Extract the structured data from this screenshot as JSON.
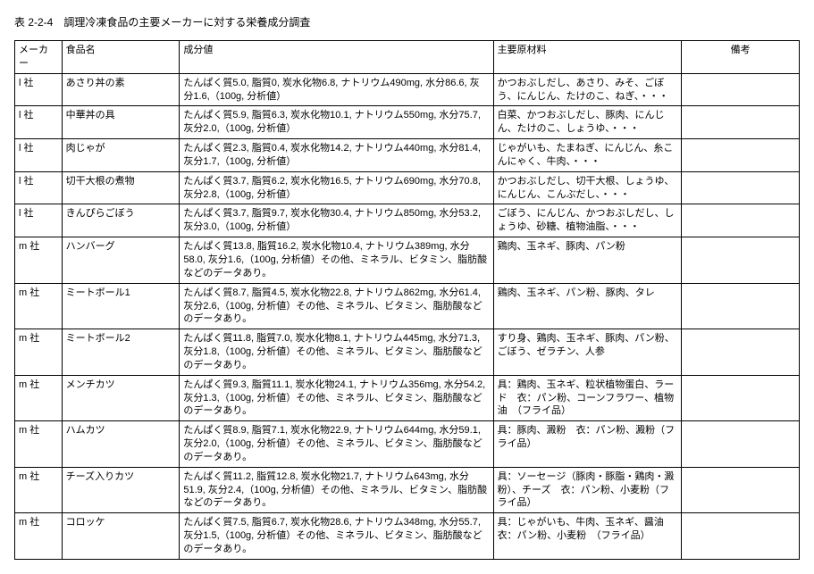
{
  "title": "表 2-2-4　調理冷凍食品の主要メーカーに対する栄養成分調査",
  "headers": {
    "maker": "メーカー",
    "food": "食品名",
    "component": "成分値",
    "material": "主要原材料",
    "note": "備考"
  },
  "rows": [
    {
      "maker": "l 社",
      "food": "あさり丼の素",
      "component": "たんぱく質5.0, 脂質0, 炭水化物6.8, ナトリウム490mg, 水分86.6, 灰分1.6,（100g, 分析値）",
      "material": "かつおぶしだし、あさり、みそ、ごぼう、にんじん、たけのこ、ねぎ、・・・",
      "note": ""
    },
    {
      "maker": "l 社",
      "food": "中華丼の具",
      "component": "たんぱく質5.9, 脂質6.3, 炭水化物10.1, ナトリウム550mg, 水分75.7, 灰分2.0,（100g, 分析値）",
      "material": "白菜、かつおぶしだし、豚肉、にんじん、たけのこ、しょうゆ、・・・",
      "note": ""
    },
    {
      "maker": "l 社",
      "food": "肉じゃが",
      "component": "たんぱく質2.3, 脂質0.4, 炭水化物14.2, ナトリウム440mg, 水分81.4, 灰分1.7,（100g, 分析値）",
      "material": "じゃがいも、たまねぎ、にんじん、糸こんにゃく、牛肉、・・・",
      "note": ""
    },
    {
      "maker": "l 社",
      "food": "切干大根の煮物",
      "component": "たんぱく質3.7, 脂質6.2, 炭水化物16.5, ナトリウム690mg, 水分70.8, 灰分2.8,（100g, 分析値）",
      "material": "かつおぶしだし、切干大根、しょうゆ、にんじん、こんぶだし、・・・",
      "note": ""
    },
    {
      "maker": "l 社",
      "food": "きんぴらごぼう",
      "component": "たんぱく質3.7, 脂質9.7, 炭水化物30.4, ナトリウム850mg, 水分53.2, 灰分3.0,（100g, 分析値）",
      "material": "ごぼう、にんじん、かつおぶしだし、しょうゆ、砂糖、植物油脂、・・・",
      "note": ""
    },
    {
      "maker": "m 社",
      "food": "ハンバーグ",
      "component": "たんぱく質13.8, 脂質16.2, 炭水化物10.4, ナトリウム389mg, 水分58.0, 灰分1.6,（100g, 分析値）その他、ミネラル、ビタミン、脂肪酸などのデータあり。",
      "material": "鶏肉、玉ネギ、豚肉、パン粉",
      "note": ""
    },
    {
      "maker": "m 社",
      "food": "ミートボール1",
      "component": "たんぱく質8.7, 脂質4.5, 炭水化物22.8, ナトリウム862mg, 水分61.4, 灰分2.6,（100g, 分析値）その他、ミネラル、ビタミン、脂肪酸などのデータあり。",
      "material": "鶏肉、玉ネギ、パン粉、豚肉、タレ",
      "note": ""
    },
    {
      "maker": "m 社",
      "food": "ミートボール2",
      "component": "たんぱく質11.8, 脂質7.0, 炭水化物8.1, ナトリウム445mg, 水分71.3, 灰分1.8,（100g, 分析値）その他、ミネラル、ビタミン、脂肪酸などのデータあり。",
      "material": "すり身、鶏肉、玉ネギ、豚肉、パン粉、ごぼう、ゼラチン、人参",
      "note": ""
    },
    {
      "maker": "m 社",
      "food": "メンチカツ",
      "component": "たんぱく質9.3, 脂質11.1, 炭水化物24.1, ナトリウム356mg, 水分54.2, 灰分1.3,（100g, 分析値）その他、ミネラル、ビタミン、脂肪酸などのデータあり。",
      "material": "具：鶏肉、玉ネギ、粒状植物蛋白、ラード　衣：パン粉、コーンフラワー、植物油　（フライ品）",
      "note": ""
    },
    {
      "maker": "m 社",
      "food": "ハムカツ",
      "component": "たんぱく質8.9, 脂質7.1, 炭水化物22.9, ナトリウム644mg, 水分59.1, 灰分2.0,（100g, 分析値）その他、ミネラル、ビタミン、脂肪酸などのデータあり。",
      "material": "具：豚肉、澱粉　衣：パン粉、澱粉（フライ品）",
      "note": ""
    },
    {
      "maker": "m 社",
      "food": "チーズ入りカツ",
      "component": "たんぱく質11.2, 脂質12.8, 炭水化物21.7, ナトリウム643mg, 水分51.9, 灰分2.4,（100g, 分析値）その他、ミネラル、ビタミン、脂肪酸などのデータあり。",
      "material": "具：ソーセージ（豚肉・豚脂・鶏肉・澱粉）、チーズ　衣：パン粉、小麦粉（フライ品）",
      "note": ""
    },
    {
      "maker": "m 社",
      "food": "コロッケ",
      "component": "たんぱく質7.5, 脂質6.7, 炭水化物28.6, ナトリウム348mg, 水分55.7, 灰分1.5,（100g, 分析値）その他、ミネラル、ビタミン、脂肪酸などのデータあり。",
      "material": "具：じゃがいも、牛肉、玉ネギ、醤油　衣：パン粉、小麦粉　（フライ品）",
      "note": ""
    }
  ]
}
